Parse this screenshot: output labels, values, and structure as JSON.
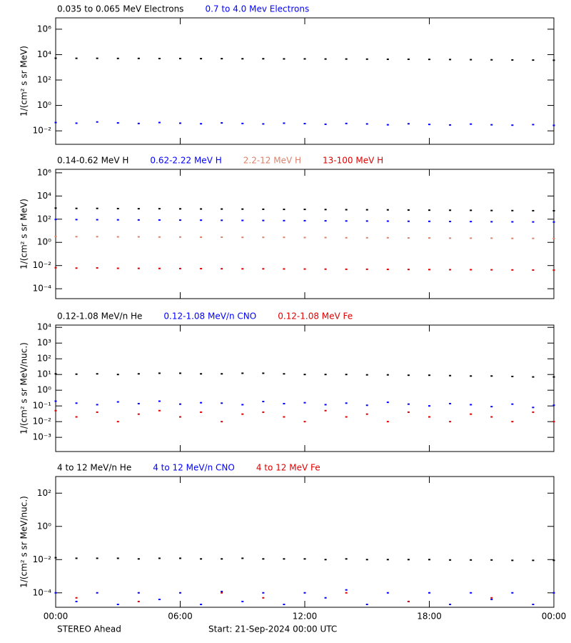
{
  "chart_data": [
    {
      "type": "scatter",
      "log_y": true,
      "y_label": "1/(cm² s sr MeV)",
      "xlim": [
        0,
        24
      ],
      "xticks": [
        0,
        6,
        12,
        18,
        24
      ],
      "ylim": [
        0.00087,
        7800000
      ],
      "yticks": [
        {
          "value": 0.01,
          "label": "10⁻²"
        },
        {
          "value": 1,
          "label": "10⁰"
        },
        {
          "value": 100,
          "label": "10²"
        },
        {
          "value": 10000,
          "label": "10⁴"
        },
        {
          "value": 1000000,
          "label": "10⁶"
        }
      ],
      "x": [
        0,
        1,
        2,
        3,
        4,
        5,
        6,
        7,
        8,
        9,
        10,
        11,
        12,
        13,
        14,
        15,
        16,
        17,
        18,
        19,
        20,
        21,
        22,
        23,
        24
      ],
      "series": [
        {
          "name": "0.035 to 0.065 MeV Electrons",
          "color": "#000000",
          "values": [
            5200,
            5100,
            5100,
            5000,
            5000,
            4900,
            4900,
            4800,
            4800,
            4700,
            4700,
            4600,
            4600,
            4500,
            4500,
            4400,
            4300,
            4300,
            4200,
            4100,
            4000,
            3900,
            3800,
            3700,
            3600
          ]
        },
        {
          "name": "0.7 to 4.0 Mev Electrons",
          "color": "#0000ff",
          "values": [
            0.045,
            0.04,
            0.05,
            0.042,
            0.038,
            0.045,
            0.04,
            0.036,
            0.042,
            0.038,
            0.035,
            0.04,
            0.037,
            0.033,
            0.038,
            0.035,
            0.03,
            0.036,
            0.032,
            0.029,
            0.034,
            0.03,
            0.028,
            0.031,
            0.027
          ]
        }
      ]
    },
    {
      "type": "scatter",
      "log_y": true,
      "y_label": "1/(cm² s sr MeV)",
      "xlim": [
        0,
        24
      ],
      "xticks": [
        0,
        6,
        12,
        18,
        24
      ],
      "ylim": [
        1.4e-05,
        2000000
      ],
      "yticks": [
        {
          "value": 0.0001,
          "label": "10⁻⁴"
        },
        {
          "value": 0.01,
          "label": "10⁻²"
        },
        {
          "value": 1,
          "label": "10⁰"
        },
        {
          "value": 100,
          "label": "10²"
        },
        {
          "value": 10000,
          "label": "10⁴"
        },
        {
          "value": 1000000,
          "label": "10⁶"
        }
      ],
      "x": [
        0,
        1,
        2,
        3,
        4,
        5,
        6,
        7,
        8,
        9,
        10,
        11,
        12,
        13,
        14,
        15,
        16,
        17,
        18,
        19,
        20,
        21,
        22,
        23,
        24
      ],
      "series": [
        {
          "name": "0.14-0.62 MeV H",
          "color": "#000000",
          "values": [
            900,
            850,
            850,
            820,
            800,
            800,
            780,
            760,
            750,
            740,
            720,
            700,
            700,
            680,
            660,
            650,
            640,
            620,
            600,
            590,
            580,
            560,
            550,
            540,
            530
          ]
        },
        {
          "name": "0.62-2.22 MeV H",
          "color": "#0000ff",
          "values": [
            95,
            92,
            90,
            88,
            86,
            85,
            83,
            82,
            80,
            78,
            77,
            75,
            74,
            72,
            70,
            69,
            68,
            66,
            65,
            63,
            62,
            60,
            59,
            58,
            57
          ]
        },
        {
          "name": "2.2-12 MeV H",
          "color": "#d9826a",
          "values": [
            3.2,
            3.1,
            3.1,
            3.0,
            3.0,
            2.9,
            2.9,
            2.8,
            2.8,
            2.7,
            2.7,
            2.7,
            2.6,
            2.6,
            2.5,
            2.5,
            2.5,
            2.4,
            2.4,
            2.3,
            2.3,
            2.3,
            2.2,
            2.2,
            2.1
          ]
        },
        {
          "name": "13-100 MeV H",
          "color": "#e00000",
          "values": [
            0.0065,
            0.006,
            0.0062,
            0.0058,
            0.0057,
            0.0056,
            0.0055,
            0.0054,
            0.0053,
            0.0052,
            0.0052,
            0.0051,
            0.005,
            0.0049,
            0.0048,
            0.0048,
            0.0047,
            0.0046,
            0.0045,
            0.0044,
            0.0044,
            0.0043,
            0.0042,
            0.0041,
            0.004
          ]
        }
      ]
    },
    {
      "type": "scatter",
      "log_y": true,
      "y_label": "1/(cm² s sr MeV/nuc.)",
      "xlim": [
        0,
        24
      ],
      "xticks": [
        0,
        6,
        12,
        18,
        24
      ],
      "ylim": [
        0.000125,
        14000
      ],
      "yticks": [
        {
          "value": 0.001,
          "label": "10⁻³"
        },
        {
          "value": 0.01,
          "label": "10⁻²"
        },
        {
          "value": 0.1,
          "label": "10⁻¹"
        },
        {
          "value": 1,
          "label": "10⁰"
        },
        {
          "value": 10,
          "label": "10¹"
        },
        {
          "value": 100,
          "label": "10²"
        },
        {
          "value": 1000,
          "label": "10³"
        },
        {
          "value": 10000,
          "label": "10⁴"
        }
      ],
      "x": [
        0,
        1,
        2,
        3,
        4,
        5,
        6,
        7,
        8,
        9,
        10,
        11,
        12,
        13,
        14,
        15,
        16,
        17,
        18,
        19,
        20,
        21,
        22,
        23,
        24
      ],
      "series": [
        {
          "name": "0.12-1.08 MeV/n He",
          "color": "#000000",
          "values": [
            11,
            10.5,
            11,
            10,
            11,
            12,
            12,
            11,
            11,
            12,
            12,
            11,
            10,
            10,
            10,
            9.5,
            9.5,
            9,
            9,
            8.5,
            8,
            8,
            7.5,
            7,
            7
          ]
        },
        {
          "name": "0.12-1.08 MeV/n CNO",
          "color": "#0000ff",
          "values": [
            0.2,
            0.15,
            0.12,
            0.18,
            0.14,
            0.2,
            0.13,
            0.16,
            0.15,
            0.12,
            0.19,
            0.14,
            0.16,
            0.12,
            0.15,
            0.11,
            0.17,
            0.13,
            0.1,
            0.14,
            0.12,
            0.09,
            0.13,
            0.08,
            0.11
          ]
        },
        {
          "name": "0.12-1.08 MeV Fe",
          "color": "#e00000",
          "values": [
            0.05,
            0.02,
            0.04,
            0.01,
            0.03,
            0.05,
            0.02,
            0.04,
            0.01,
            0.03,
            0.04,
            0.02,
            0.01,
            0.05,
            0.02,
            0.03,
            0.01,
            0.04,
            0.02,
            0.01,
            0.03,
            0.02,
            0.01,
            0.04,
            0.01
          ]
        }
      ]
    },
    {
      "type": "scatter",
      "log_y": true,
      "y_label": "1/(cm² s sr MeV/nuc.)",
      "xlim": [
        0,
        24
      ],
      "xticks": [
        {
          "value": 0,
          "label": "00:00"
        },
        {
          "value": 6,
          "label": "06:00"
        },
        {
          "value": 12,
          "label": "12:00"
        },
        {
          "value": 18,
          "label": "18:00"
        },
        {
          "value": 24,
          "label": "00:00"
        }
      ],
      "ylim": [
        1.35e-05,
        1000
      ],
      "yticks": [
        {
          "value": 0.0001,
          "label": "10⁻⁴"
        },
        {
          "value": 0.01,
          "label": "10⁻²"
        },
        {
          "value": 1,
          "label": "10⁰"
        },
        {
          "value": 100,
          "label": "10²"
        }
      ],
      "x": [
        0,
        1,
        2,
        3,
        4,
        5,
        6,
        7,
        8,
        9,
        10,
        11,
        12,
        13,
        14,
        15,
        16,
        17,
        18,
        19,
        20,
        21,
        22,
        23,
        24
      ],
      "series": [
        {
          "name": "4 to 12 MeV/n He",
          "color": "#000000",
          "values": [
            0.013,
            0.012,
            0.012,
            0.012,
            0.011,
            0.012,
            0.012,
            0.011,
            0.011,
            0.012,
            0.011,
            0.011,
            0.011,
            0.01,
            0.011,
            0.01,
            0.01,
            0.01,
            0.01,
            0.0095,
            0.0095,
            0.0095,
            0.009,
            0.009,
            0.009
          ]
        },
        {
          "name": "4 to 12 MeV/n CNO",
          "color": "#0000ff",
          "values": [
            0.0001,
            3e-05,
            0.0001,
            2e-05,
            0.0001,
            4e-05,
            0.0001,
            2e-05,
            0.00012,
            3e-05,
            0.0001,
            2e-05,
            0.0001,
            5e-05,
            0.00015,
            2e-05,
            0.0001,
            3e-05,
            0.0001,
            2e-05,
            0.0001,
            4e-05,
            0.0001,
            2e-05,
            0.0001
          ]
        },
        {
          "name": "4 to 12 MeV Fe",
          "color": "#e00000",
          "values": [
            null,
            5e-05,
            null,
            null,
            3e-05,
            null,
            null,
            null,
            0.0001,
            null,
            5e-05,
            null,
            null,
            null,
            0.0001,
            null,
            null,
            3e-05,
            null,
            null,
            null,
            5e-05,
            null,
            null,
            null
          ]
        }
      ]
    }
  ],
  "footer": {
    "spacecraft": "STEREO Ahead",
    "start": "Start: 21-Sep-2024 00:00 UTC"
  }
}
